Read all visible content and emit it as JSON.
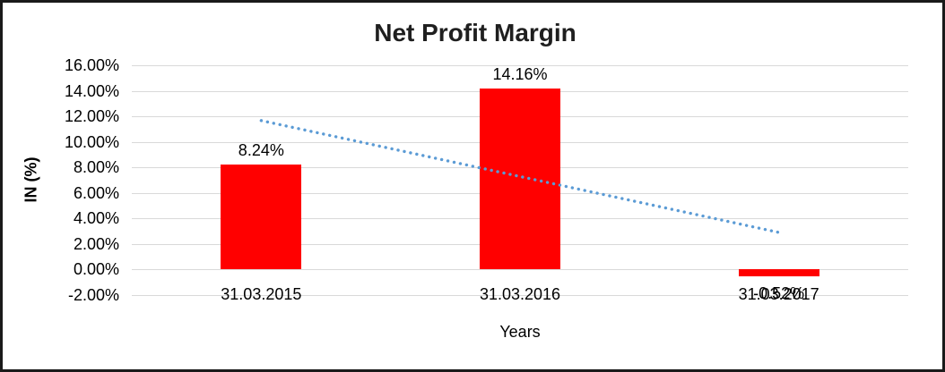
{
  "chart_data": {
    "type": "bar",
    "title": "Net Profit Margin",
    "xlabel": "Years",
    "ylabel": "IN (%)",
    "categories": [
      "31.03.2015",
      "31.03.2016",
      "31.03.2017"
    ],
    "values": [
      8.24,
      14.16,
      -0.52
    ],
    "data_labels": [
      "8.24%",
      "14.16%",
      "-0.52%"
    ],
    "ylim": [
      -2,
      16
    ],
    "yticks": [
      16,
      14,
      12,
      10,
      8,
      6,
      4,
      2,
      0,
      -2
    ],
    "ytick_labels": [
      "16.00%",
      "14.00%",
      "12.00%",
      "10.00%",
      "8.00%",
      "6.00%",
      "4.00%",
      "2.00%",
      "0.00%",
      "-2.00%"
    ],
    "grid": true,
    "legend": "none",
    "trendline": {
      "type": "linear",
      "style": "dotted",
      "start_value": 11.67,
      "end_value": 2.91
    }
  },
  "colors": {
    "bar": "#FF0000",
    "trendline": "#5B9BD5",
    "gridline": "#D9D9D9",
    "title_text": "#1F1F1F",
    "frame": "#1A1A1A"
  }
}
